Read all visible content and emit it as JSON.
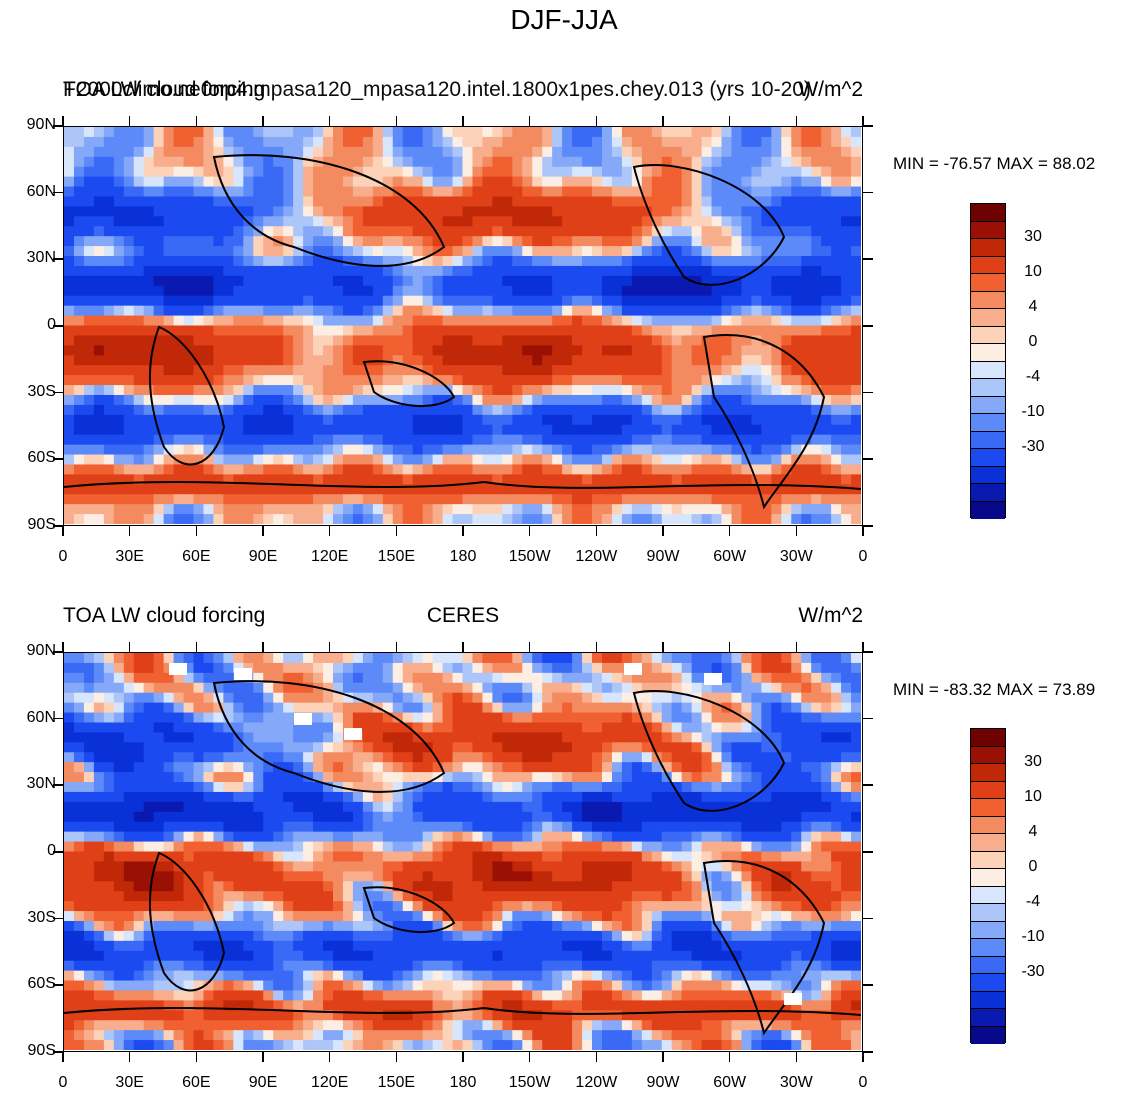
{
  "figure": {
    "suptitle": "DJF-JJA",
    "color_scale": {
      "colors": [
        "#08088a",
        "#0a1ab0",
        "#0a30d8",
        "#1a4af0",
        "#3a6af5",
        "#5c8af8",
        "#85a8f8",
        "#adc6fa",
        "#d7e6fc",
        "#fdeee3",
        "#fcd2b8",
        "#f8ae8c",
        "#f48a60",
        "#f06030",
        "#e04018",
        "#c02808",
        "#9a1004",
        "#6e0202"
      ],
      "labels": [
        "30",
        "10",
        "4",
        "0",
        "-4",
        "-10",
        "-30"
      ]
    }
  },
  "panels": [
    {
      "title_left": "TOA LW cloud forcing",
      "title_center": "F2000climo.ne0np4.mpasa120_mpasa120.intel.1800x1pes.chey.013 (yrs 10-20)",
      "units": "W/m^2",
      "min_max": "MIN = -76.57 MAX =  88.02",
      "lat_labels": [
        "90N",
        "60N",
        "30N",
        "0",
        "30S",
        "60S",
        "90S"
      ],
      "lon_labels": [
        "0",
        "30E",
        "60E",
        "90E",
        "120E",
        "150E",
        "180",
        "150W",
        "120W",
        "90W",
        "60W",
        "30W",
        "0"
      ]
    },
    {
      "title_left": "TOA LW cloud forcing",
      "title_center": "CERES",
      "units": "W/m^2",
      "min_max": "MIN = -83.32 MAX =  73.89",
      "lat_labels": [
        "90N",
        "60N",
        "30N",
        "0",
        "30S",
        "60S",
        "90S"
      ],
      "lon_labels": [
        "0",
        "30E",
        "60E",
        "90E",
        "120E",
        "150E",
        "180",
        "150W",
        "120W",
        "90W",
        "60W",
        "30W",
        "0"
      ]
    }
  ]
}
